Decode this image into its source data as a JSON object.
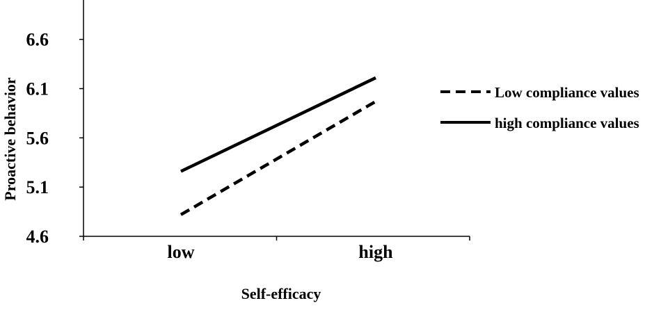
{
  "chart_data": {
    "type": "line",
    "title": "",
    "xlabel": "Self-efficacy",
    "ylabel": "Proactive behavior",
    "categories": [
      "low",
      "high"
    ],
    "ylim": [
      4.6,
      7.0
    ],
    "yticks": [
      "4.6",
      "5.1",
      "5.6",
      "6.1",
      "6.6"
    ],
    "ytick_values": [
      4.6,
      5.1,
      5.6,
      6.1,
      6.6
    ],
    "grid": false,
    "legend_position": "right",
    "series": [
      {
        "name": "Low compliance values",
        "values": [
          4.82,
          5.97
        ],
        "style": "dashed",
        "color": "#000000"
      },
      {
        "name": "high compliance values",
        "values": [
          5.26,
          6.21
        ],
        "style": "solid",
        "color": "#000000"
      }
    ]
  }
}
